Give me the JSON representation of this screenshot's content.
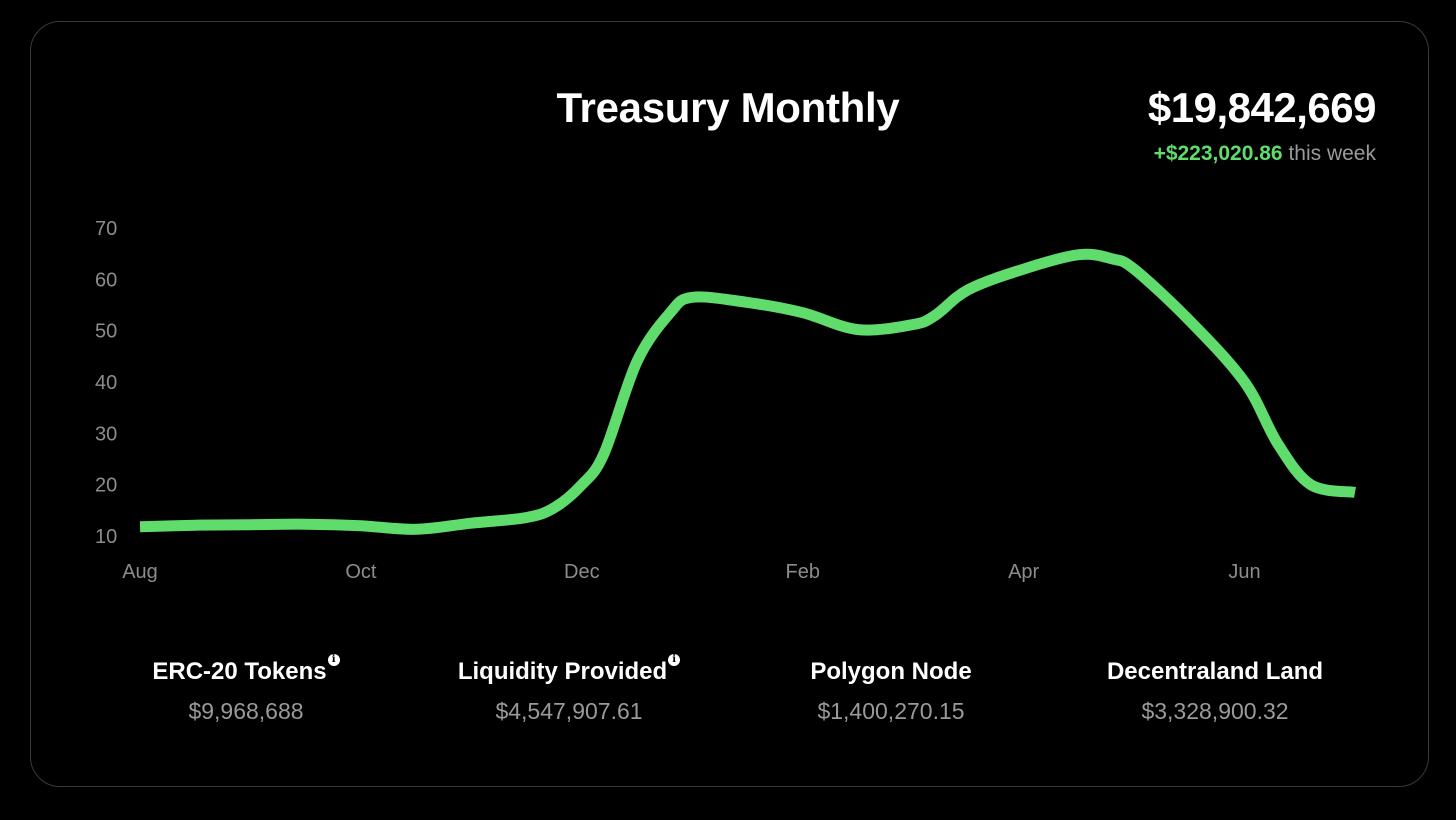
{
  "header": {
    "title": "Treasury Monthly",
    "total_value": "$19,842,669",
    "weekly_change": "+$223,020.86",
    "weekly_change_suffix": "this week"
  },
  "colors": {
    "background": "#000000",
    "line": "#5fdc6b",
    "accent_positive": "#5fdc6b",
    "muted_text": "#9a9a9a",
    "card_border": "#3a3a3a"
  },
  "chart_data": {
    "type": "line",
    "title": "Treasury Monthly",
    "xlabel": "",
    "ylabel": "",
    "x_ticks": [
      "Aug",
      "Oct",
      "Dec",
      "Feb",
      "Apr",
      "Jun"
    ],
    "y_ticks": [
      10,
      20,
      30,
      40,
      50,
      60,
      70
    ],
    "xlim": [
      0,
      11
    ],
    "ylim": [
      10,
      70
    ],
    "grid": false,
    "legend": "none",
    "series": [
      {
        "x": [
          0,
          0.5,
          1.0,
          1.5,
          2.0,
          2.5,
          3.0,
          3.5,
          3.75,
          4.0,
          4.2,
          4.5,
          4.8,
          5.0,
          5.5,
          6.0,
          6.5,
          7.0,
          7.2,
          7.5,
          8.0,
          8.5,
          8.8,
          9.0,
          9.5,
          10.0,
          10.3,
          10.6,
          11.0
        ],
        "y": [
          11.8,
          12.1,
          12.2,
          12.3,
          12.0,
          11.3,
          12.5,
          13.6,
          15.5,
          20,
          26,
          44,
          53.5,
          56.5,
          55.5,
          53.5,
          50.2,
          51.2,
          53,
          58,
          62,
          64.8,
          64,
          62,
          52,
          40,
          28,
          20,
          18.5
        ]
      }
    ]
  },
  "stats": [
    {
      "label": "ERC-20 Tokens",
      "value": "$9,968,688",
      "info_icon": "info-icon"
    },
    {
      "label": "Liquidity Provided",
      "value": "$4,547,907.61",
      "info_icon": "info-icon"
    },
    {
      "label": "Polygon Node",
      "value": "$1,400,270.15"
    },
    {
      "label": "Decentraland Land",
      "value": "$3,328,900.32"
    }
  ]
}
